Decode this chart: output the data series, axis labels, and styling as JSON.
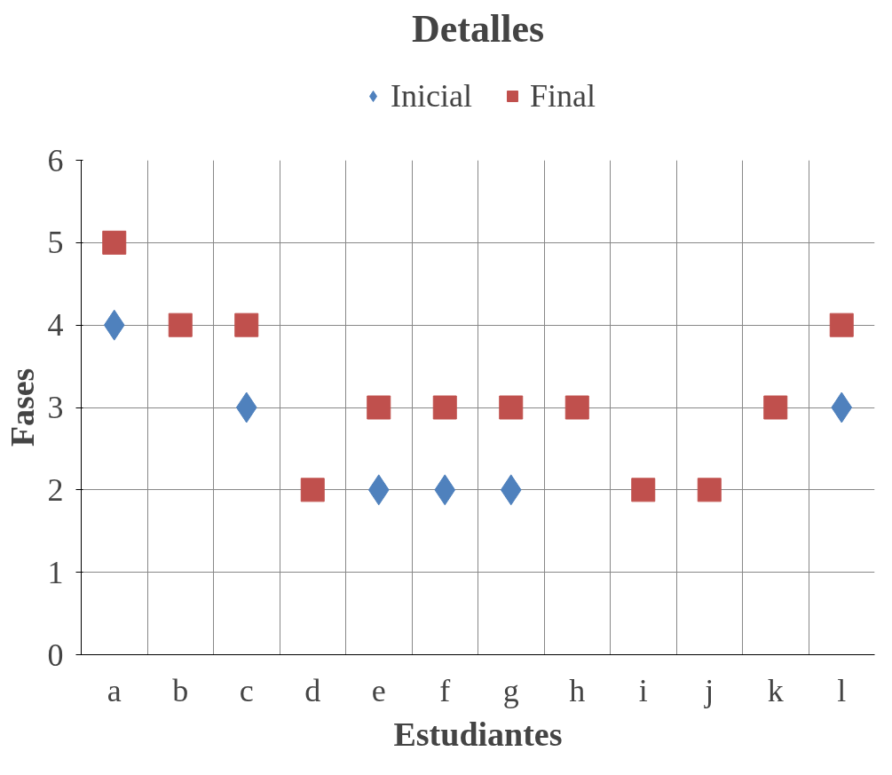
{
  "chart_data": {
    "type": "scatter",
    "title": "Detalles",
    "xlabel": "Estudiantes",
    "ylabel": "Fases",
    "categories": [
      "a",
      "b",
      "c",
      "d",
      "e",
      "f",
      "g",
      "h",
      "i",
      "j",
      "k",
      "l"
    ],
    "series": [
      {
        "name": "Inicial",
        "color": "#4f81bd",
        "marker": "diamond",
        "values": [
          4,
          null,
          3,
          null,
          2,
          2,
          2,
          null,
          null,
          null,
          null,
          3
        ]
      },
      {
        "name": "Final",
        "color": "#c0504d",
        "marker": "square",
        "values": [
          5,
          4,
          4,
          2,
          3,
          3,
          3,
          3,
          2,
          2,
          3,
          4
        ]
      }
    ],
    "ylim": [
      0,
      6
    ],
    "yticks": [
      0,
      1,
      2,
      3,
      4,
      5,
      6
    ],
    "grid": true,
    "legend": "top"
  }
}
